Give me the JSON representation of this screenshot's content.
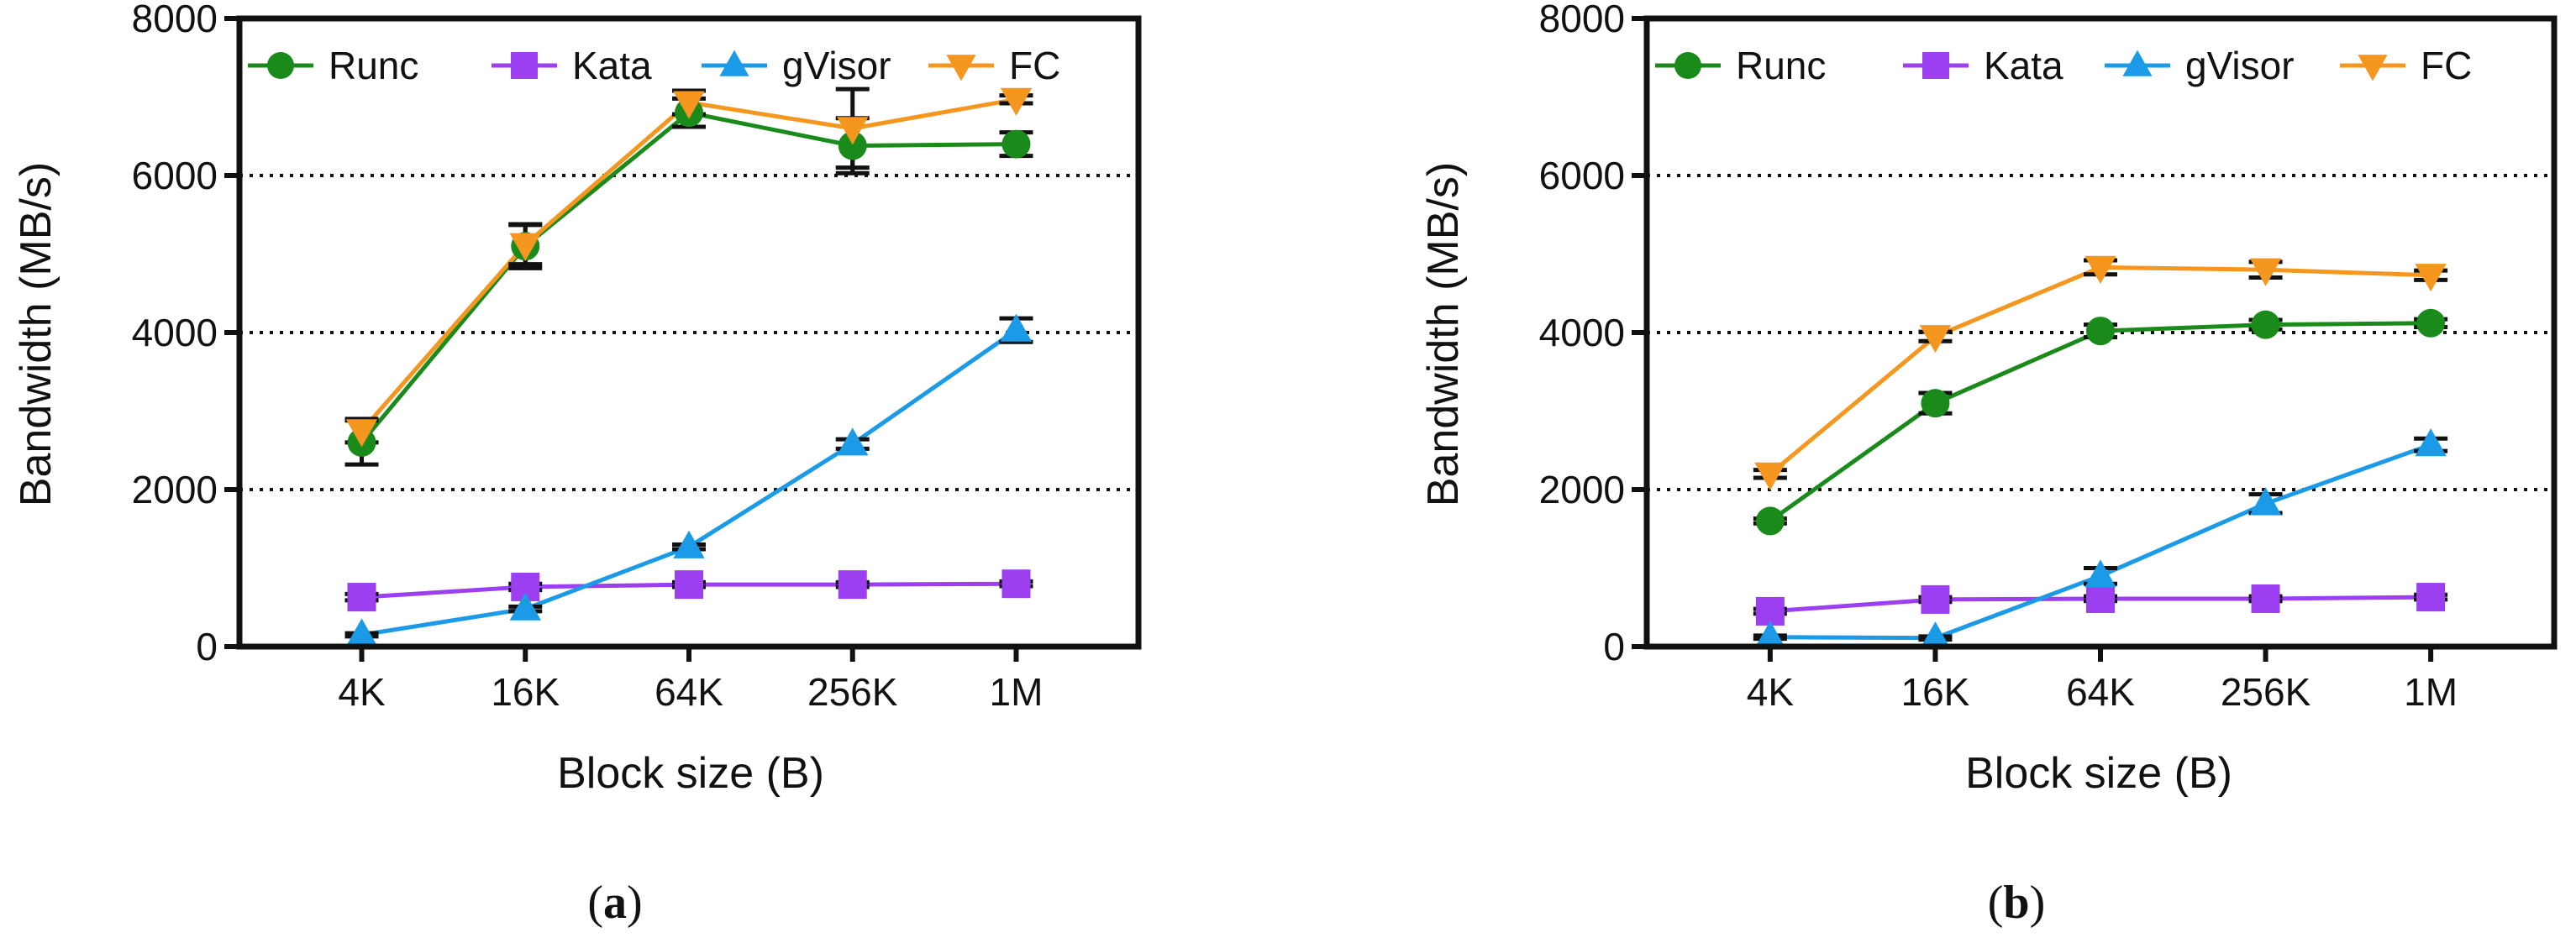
{
  "chart_data": [
    {
      "type": "line",
      "caption": "a",
      "xlabel": "Block size (B)",
      "ylabel": "Bandwidth (MB/s)",
      "ylim": [
        0,
        8000
      ],
      "yticks": [
        "0",
        "2000",
        "4000",
        "6000",
        "8000"
      ],
      "gridlines": [
        2000,
        4000,
        6000
      ],
      "legend_position": "top",
      "categories": [
        "4K",
        "16K",
        "64K",
        "256K",
        "1M"
      ],
      "series": [
        {
          "name": "Runc",
          "color": "#1a8a1a",
          "marker": "circle",
          "values": [
            2600,
            5100,
            6800,
            6380,
            6400
          ],
          "errors": [
            280,
            280,
            180,
            350,
            150
          ]
        },
        {
          "name": "Kata",
          "color": "#9b3ff0",
          "marker": "square",
          "values": [
            630,
            760,
            790,
            790,
            800
          ],
          "errors": [
            40,
            40,
            30,
            30,
            30
          ]
        },
        {
          "name": "gVisor",
          "color": "#1b9ae8",
          "marker": "triangle-up",
          "values": [
            150,
            480,
            1270,
            2580,
            4030
          ],
          "errors": [
            20,
            30,
            30,
            60,
            150
          ]
        },
        {
          "name": "FC",
          "color": "#f5961e",
          "marker": "triangle-down",
          "values": [
            2750,
            5120,
            6930,
            6600,
            6970
          ],
          "errors": [
            150,
            250,
            150,
            500,
            50
          ]
        }
      ]
    },
    {
      "type": "line",
      "caption": "b",
      "xlabel": "Block size (B)",
      "ylabel": "Bandwidth (MB/s)",
      "ylim": [
        0,
        8000
      ],
      "yticks": [
        "0",
        "2000",
        "4000",
        "6000",
        "8000"
      ],
      "gridlines": [
        2000,
        4000,
        6000
      ],
      "legend_position": "top",
      "categories": [
        "4K",
        "16K",
        "64K",
        "256K",
        "1M"
      ],
      "series": [
        {
          "name": "Runc",
          "color": "#1a8a1a",
          "marker": "circle",
          "values": [
            1600,
            3100,
            4020,
            4100,
            4120
          ],
          "errors": [
            30,
            130,
            80,
            60,
            50
          ]
        },
        {
          "name": "Kata",
          "color": "#9b3ff0",
          "marker": "square",
          "values": [
            450,
            600,
            610,
            610,
            630
          ],
          "errors": [
            30,
            30,
            30,
            30,
            30
          ]
        },
        {
          "name": "gVisor",
          "color": "#1b9ae8",
          "marker": "triangle-up",
          "values": [
            120,
            110,
            900,
            1820,
            2570
          ],
          "errors": [
            20,
            20,
            100,
            120,
            80
          ]
        },
        {
          "name": "FC",
          "color": "#f5961e",
          "marker": "triangle-down",
          "values": [
            2200,
            3950,
            4830,
            4800,
            4730
          ],
          "errors": [
            50,
            60,
            90,
            100,
            60
          ]
        }
      ]
    }
  ]
}
